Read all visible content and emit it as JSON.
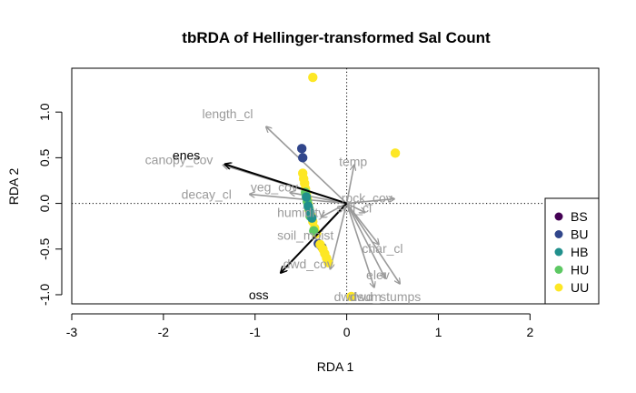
{
  "chart_data": {
    "type": "scatter",
    "title": "tbRDA of Hellinger-transformed Sal Count",
    "xlabel": "RDA 1",
    "ylabel": "RDA 2",
    "xlim": [
      -3.0,
      2.75
    ],
    "ylim": [
      -1.1,
      1.48
    ],
    "x_ticks": [
      -3,
      -2,
      -1,
      0,
      1,
      2
    ],
    "y_ticks": [
      -1.0,
      -0.5,
      0.0,
      0.5,
      1.0
    ],
    "x_tick_labels": [
      "-3",
      "-2",
      "-1",
      "0",
      "1",
      "2"
    ],
    "y_tick_labels": [
      "-1.0",
      "-0.5",
      "0.0",
      "0.5",
      "1.0"
    ],
    "reference_lines": {
      "x": 0,
      "y": 0,
      "style": "dotted"
    },
    "legend": {
      "position": "bottom-right",
      "entries": [
        {
          "name": "BS",
          "color": "#440154"
        },
        {
          "name": "BU",
          "color": "#31468B"
        },
        {
          "name": "HB",
          "color": "#21908C"
        },
        {
          "name": "HU",
          "color": "#5DC863"
        },
        {
          "name": "UU",
          "color": "#FDE725"
        }
      ]
    },
    "sites": [
      {
        "group": "UU",
        "x": -0.37,
        "y": 1.38
      },
      {
        "group": "UU",
        "x": 0.53,
        "y": 0.55
      },
      {
        "group": "UU",
        "x": 0.05,
        "y": -1.02
      },
      {
        "group": "BU",
        "x": -0.49,
        "y": 0.6
      },
      {
        "group": "BU",
        "x": -0.48,
        "y": 0.5
      },
      {
        "group": "BU",
        "x": -0.31,
        "y": -0.44
      },
      {
        "group": "BU",
        "x": -0.27,
        "y": -0.48
      },
      {
        "group": "UU",
        "x": -0.48,
        "y": 0.33
      },
      {
        "group": "UU",
        "x": -0.47,
        "y": 0.27
      },
      {
        "group": "UU",
        "x": -0.46,
        "y": 0.22
      },
      {
        "group": "UU",
        "x": -0.45,
        "y": 0.16
      },
      {
        "group": "UU",
        "x": -0.44,
        "y": 0.1
      },
      {
        "group": "UU",
        "x": -0.43,
        "y": 0.05
      },
      {
        "group": "UU",
        "x": -0.42,
        "y": -0.01
      },
      {
        "group": "UU",
        "x": -0.41,
        "y": -0.07
      },
      {
        "group": "UU",
        "x": -0.39,
        "y": -0.13
      },
      {
        "group": "UU",
        "x": -0.37,
        "y": -0.2
      },
      {
        "group": "UU",
        "x": -0.35,
        "y": -0.27
      },
      {
        "group": "UU",
        "x": -0.33,
        "y": -0.33
      },
      {
        "group": "UU",
        "x": -0.29,
        "y": -0.45
      },
      {
        "group": "UU",
        "x": -0.26,
        "y": -0.5
      },
      {
        "group": "UU",
        "x": -0.24,
        "y": -0.55
      },
      {
        "group": "UU",
        "x": -0.22,
        "y": -0.6
      },
      {
        "group": "UU",
        "x": -0.2,
        "y": -0.65
      },
      {
        "group": "HU",
        "x": -0.45,
        "y": 0.12
      },
      {
        "group": "HU",
        "x": -0.43,
        "y": 0.02
      },
      {
        "group": "HU",
        "x": -0.41,
        "y": -0.06
      },
      {
        "group": "HU",
        "x": -0.4,
        "y": -0.14
      },
      {
        "group": "HU",
        "x": -0.36,
        "y": -0.3
      },
      {
        "group": "HB",
        "x": -0.44,
        "y": 0.07
      },
      {
        "group": "HB",
        "x": -0.42,
        "y": -0.03
      },
      {
        "group": "HB",
        "x": -0.4,
        "y": -0.1
      },
      {
        "group": "HB",
        "x": -0.38,
        "y": -0.16
      }
    ],
    "env_vectors": [
      {
        "name": "length_cl",
        "x": -0.88,
        "y": 0.84,
        "label_x": -1.3,
        "label_y": 0.98
      },
      {
        "name": "canopy_cov",
        "x": -1.35,
        "y": 0.42,
        "label_x": -1.83,
        "label_y": 0.48
      },
      {
        "name": "decay_cl",
        "x": -1.06,
        "y": 0.1,
        "label_x": -1.53,
        "label_y": 0.1
      },
      {
        "name": "veg_cov",
        "x": -0.62,
        "y": 0.12,
        "label_x": -0.79,
        "label_y": 0.18
      },
      {
        "name": "temp",
        "x": 0.08,
        "y": 0.42,
        "label_x": 0.07,
        "label_y": 0.46
      },
      {
        "name": "rock_cov",
        "x": 0.52,
        "y": 0.05,
        "label_x": 0.22,
        "label_y": 0.06
      },
      {
        "name": "soil_cl",
        "x": 0.2,
        "y": -0.1,
        "label_x": 0.08,
        "label_y": -0.05
      },
      {
        "name": "humidity",
        "x": -0.28,
        "y": -0.15,
        "label_x": -0.5,
        "label_y": -0.1
      },
      {
        "name": "soil_moist",
        "x": -0.35,
        "y": -0.38,
        "label_x": -0.45,
        "label_y": -0.35
      },
      {
        "name": "dwd_cov",
        "x": -0.18,
        "y": -0.72,
        "label_x": -0.42,
        "label_y": -0.66
      },
      {
        "name": "char_cl",
        "x": 0.35,
        "y": -0.45,
        "label_x": 0.39,
        "label_y": -0.49
      },
      {
        "name": "elev",
        "x": 0.42,
        "y": -0.82,
        "label_x": 0.34,
        "label_y": -0.78
      },
      {
        "name": "dwd_stumps",
        "x": 0.58,
        "y": -0.88,
        "label_x": 0.42,
        "label_y": -1.02
      },
      {
        "name": "dwdsum",
        "x": 0.3,
        "y": -0.92,
        "label_x": 0.12,
        "label_y": -1.02
      }
    ],
    "species_vectors": [
      {
        "name": "enes",
        "x": -1.33,
        "y": 0.43,
        "label_x": -1.75,
        "label_y": 0.53
      },
      {
        "name": "oss",
        "x": -0.72,
        "y": -0.76,
        "label_x": -0.96,
        "label_y": -1.0
      }
    ]
  }
}
